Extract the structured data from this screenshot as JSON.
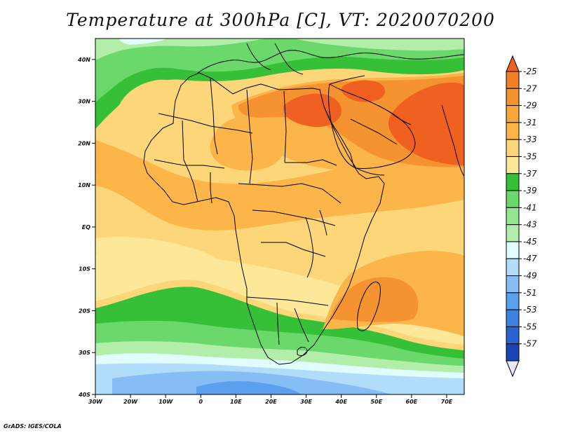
{
  "title": "Temperature at 300hPa [C], VT: 2020070200",
  "credit": "GrADS: IGES/COLA",
  "map": {
    "lon_range": [
      -30,
      75
    ],
    "lat_range": [
      -40,
      45
    ],
    "lon_ticks": [
      {
        "value": -30,
        "label": "30W"
      },
      {
        "value": -20,
        "label": "20W"
      },
      {
        "value": -10,
        "label": "10W"
      },
      {
        "value": 0,
        "label": "0"
      },
      {
        "value": 10,
        "label": "10E"
      },
      {
        "value": 20,
        "label": "20E"
      },
      {
        "value": 30,
        "label": "30E"
      },
      {
        "value": 40,
        "label": "40E"
      },
      {
        "value": 50,
        "label": "50E"
      },
      {
        "value": 60,
        "label": "60E"
      },
      {
        "value": 70,
        "label": "70E"
      }
    ],
    "lat_ticks": [
      {
        "value": 40,
        "label": "40N"
      },
      {
        "value": 30,
        "label": "30N"
      },
      {
        "value": 20,
        "label": "20N"
      },
      {
        "value": 10,
        "label": "10N"
      },
      {
        "value": 0,
        "label": "EQ"
      },
      {
        "value": -10,
        "label": "10S"
      },
      {
        "value": -20,
        "label": "20S"
      },
      {
        "value": -30,
        "label": "30S"
      },
      {
        "value": -40,
        "label": "40S"
      }
    ],
    "field_bands": [
      {
        "level": -27,
        "color": "#f06020"
      },
      {
        "level": -29,
        "color": "#f59330"
      },
      {
        "level": -31,
        "color": "#fbb548"
      },
      {
        "level": -33,
        "color": "#fdd67a"
      },
      {
        "level": -35,
        "color": "#fde89a"
      },
      {
        "level": -37,
        "color": "#36c037"
      },
      {
        "level": -39,
        "color": "#6ad86a"
      },
      {
        "level": -41,
        "color": "#b2eeaa"
      },
      {
        "level": -43,
        "color": "#e0fcfd"
      },
      {
        "level": -45,
        "color": "#b2ddfa"
      },
      {
        "level": -47,
        "color": "#86bdf4"
      },
      {
        "level": -49,
        "color": "#5aa0ee"
      }
    ]
  },
  "colorbar": {
    "labels": [
      "-25",
      "-27",
      "-29",
      "-31",
      "-33",
      "-35",
      "-37",
      "-39",
      "-41",
      "-43",
      "-45",
      "-47",
      "-49",
      "-51",
      "-53",
      "-55",
      "-57"
    ],
    "colors": [
      "#f06020",
      "#f28028",
      "#f59330",
      "#f8a73c",
      "#fbb548",
      "#fdd67a",
      "#fde89a",
      "#36c037",
      "#6ad86a",
      "#92e892",
      "#b2eeaa",
      "#e0fcfd",
      "#b2ddfa",
      "#86bdf4",
      "#5aa0ee",
      "#3d82e2",
      "#2a63d0",
      "#1c44b4",
      "#0d1f80"
    ],
    "end_low_color": "#e8e6fb",
    "end_high_color": "#f06020"
  }
}
